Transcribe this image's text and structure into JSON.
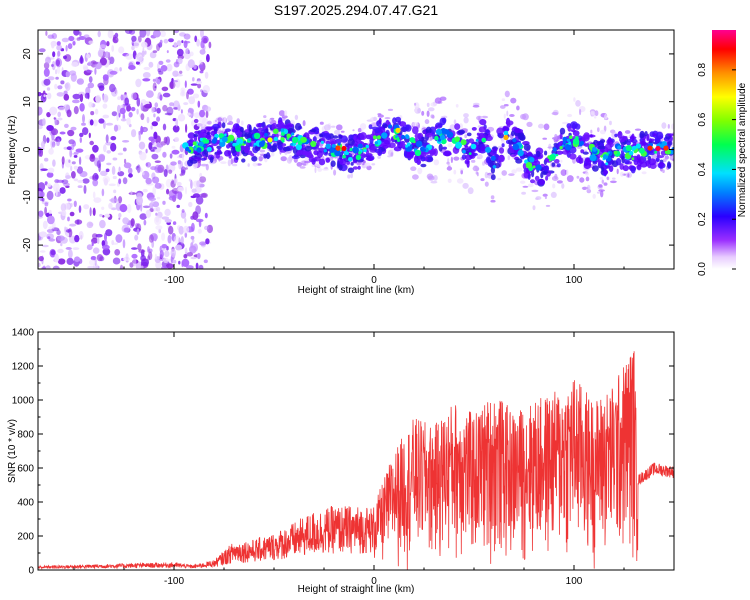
{
  "title": "S197.2025.294.07.47.G21",
  "chart_data": [
    {
      "type": "heatmap",
      "name": "spectrogram",
      "xlabel": "Height of straight line (km)",
      "ylabel": "Frequency (Hz)",
      "xlim": [
        -168,
        150
      ],
      "ylim": [
        -25,
        25
      ],
      "x_ticks": [
        -100,
        0,
        100
      ],
      "y_ticks": [
        -20,
        -10,
        0,
        10,
        20
      ],
      "colorbar": {
        "label": "Normalized spectral amplitude",
        "range": [
          0,
          0.96
        ],
        "ticks": [
          "0.0",
          "0.2",
          "0.4",
          "0.6",
          "0.8"
        ],
        "tick_values": [
          0,
          0.2,
          0.4,
          0.6,
          0.8
        ]
      },
      "ridge": {
        "x": [
          -100,
          -85,
          -75,
          -65,
          -55,
          -45,
          -35,
          -25,
          -18,
          -12,
          -5,
          0,
          5,
          10,
          18,
          25,
          32,
          40,
          48,
          55,
          60,
          66,
          72,
          78,
          85,
          92,
          98,
          104,
          110,
          116,
          122,
          128,
          135,
          150
        ],
        "y": [
          0,
          1,
          2,
          1,
          2,
          3,
          1,
          0.5,
          0,
          -1,
          0,
          2,
          3,
          4,
          1,
          0,
          3,
          2,
          0,
          3,
          -3,
          4,
          1,
          -3,
          -4,
          0,
          2,
          1,
          -1,
          -2,
          0,
          -1,
          0,
          0
        ]
      }
    },
    {
      "type": "line",
      "name": "snr",
      "xlabel": "Height of straight line (km)",
      "ylabel": "SNR (10 * v/v)",
      "xlim": [
        -168,
        150
      ],
      "ylim": [
        0,
        1400
      ],
      "x_ticks": [
        -100,
        0,
        100
      ],
      "y_ticks": [
        0,
        200,
        400,
        600,
        800,
        1000,
        1200,
        1400
      ],
      "series_color": "#ee3333",
      "envelope_x": [
        -168,
        -150,
        -120,
        -100,
        -90,
        -80,
        -70,
        -60,
        -50,
        -40,
        -30,
        -20,
        -10,
        0,
        10,
        20,
        30,
        40,
        50,
        60,
        70,
        80,
        90,
        100,
        110,
        120,
        130,
        132,
        140,
        150
      ],
      "envelope_y": [
        25,
        30,
        40,
        45,
        30,
        60,
        170,
        180,
        220,
        280,
        350,
        380,
        380,
        380,
        700,
        900,
        850,
        1000,
        920,
        1050,
        930,
        1000,
        1050,
        1150,
        1000,
        1100,
        1350,
        550,
        620,
        600
      ]
    }
  ]
}
